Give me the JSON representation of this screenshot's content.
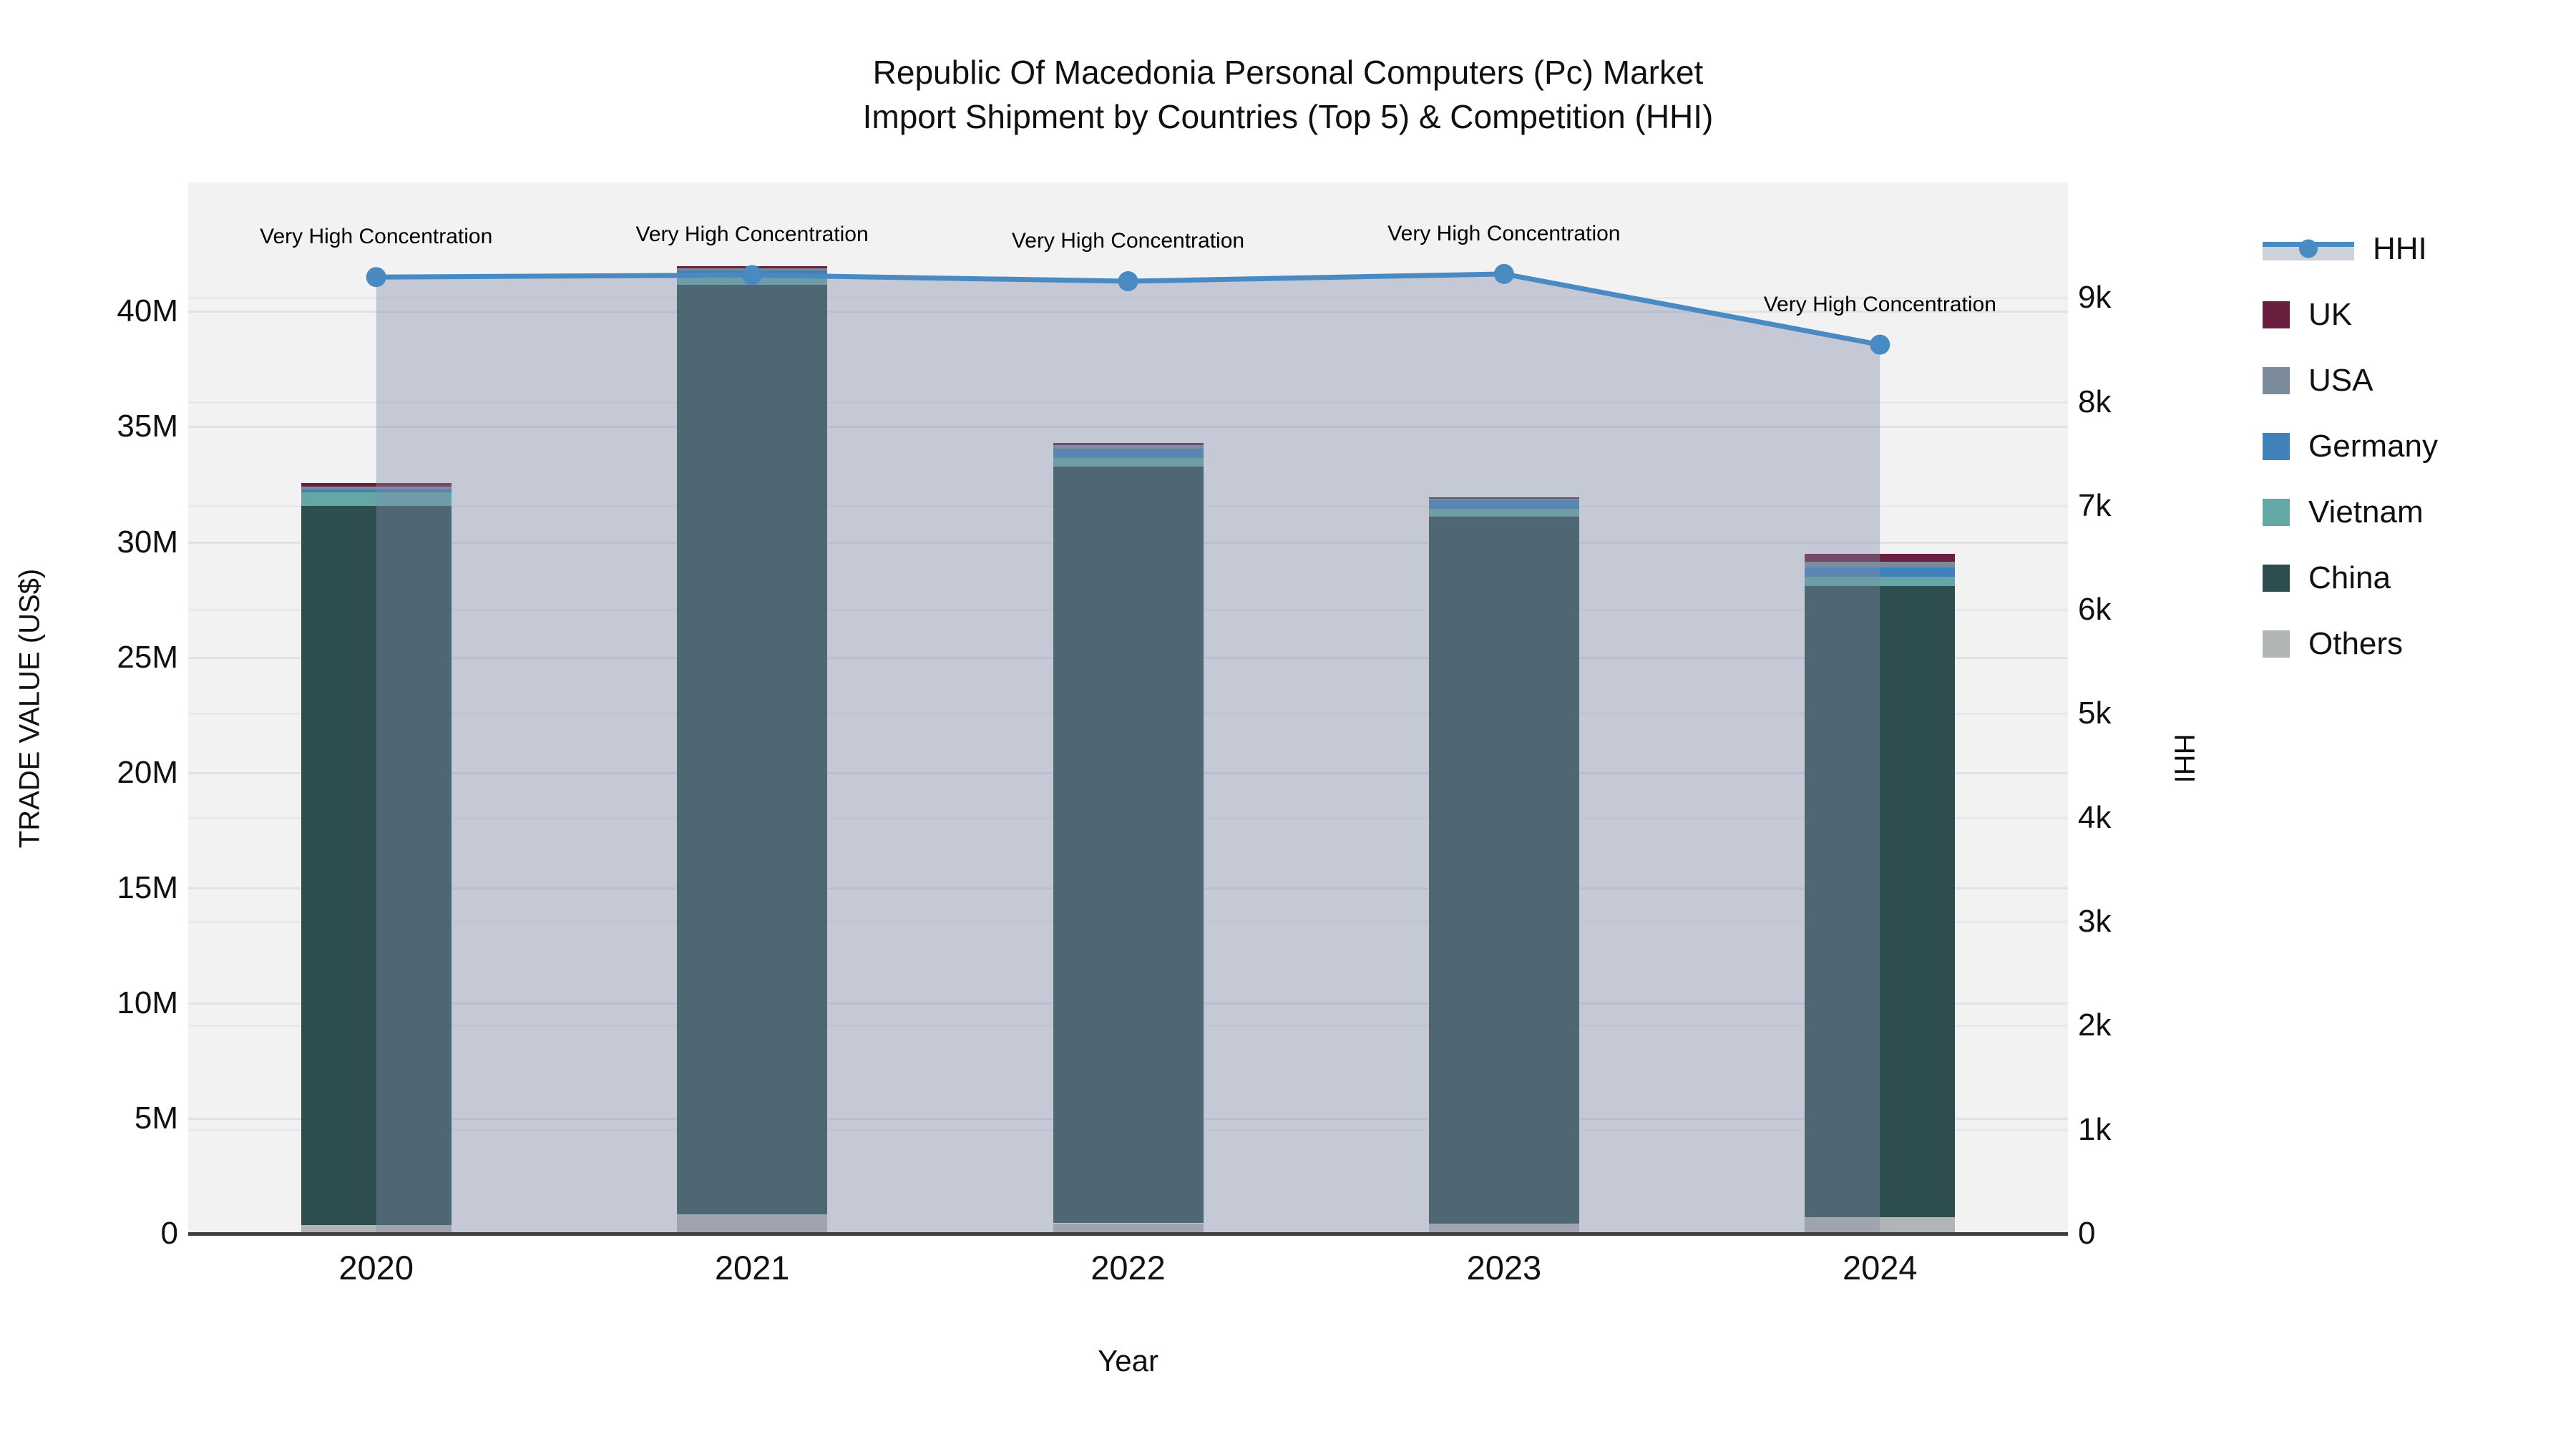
{
  "title": {
    "line1": "Republic Of Macedonia Personal Computers (Pc) Market",
    "line2": "Import Shipment by Countries (Top 5) & Competition (HHI)"
  },
  "axes": {
    "x": {
      "title": "Year"
    },
    "y_left": {
      "title": "TRADE VALUE (US$)"
    },
    "y_right": {
      "title": "HHI"
    }
  },
  "colors": {
    "plot_bg": "#f2f2f3",
    "grid_left": "#e2e2e4",
    "grid_right": "#e9e9eb",
    "baseline": "#3f3f3f",
    "hhi_line": "#4a8ac2",
    "hhi_fill": "rgba(130,140,170,0.4)",
    "text": "#111111"
  },
  "chart_data": {
    "type": "bar",
    "stacked": true,
    "title": "Republic Of Macedonia Personal Computers (Pc) Market Import Shipment by Countries (Top 5) & Competition (HHI)",
    "xlabel": "Year",
    "ylabel": "TRADE VALUE (US$)",
    "ylabel_right": "HHI",
    "categories": [
      "2020",
      "2021",
      "2022",
      "2023",
      "2024"
    ],
    "series": [
      {
        "name": "UK",
        "color": "#6b1f3e",
        "values": [
          160000,
          90000,
          90000,
          50000,
          340000
        ]
      },
      {
        "name": "USA",
        "color": "#7c8b9b",
        "values": [
          120000,
          120000,
          160000,
          70000,
          250000
        ]
      },
      {
        "name": "Germany",
        "color": "#4181ba",
        "values": [
          130000,
          220000,
          400000,
          400000,
          400000
        ]
      },
      {
        "name": "Vietnam",
        "color": "#63a8a5",
        "values": [
          580000,
          400000,
          370000,
          340000,
          400000
        ]
      },
      {
        "name": "China",
        "color": "#2e4d4f",
        "values": [
          31200000,
          40300000,
          32830000,
          30640000,
          27400000
        ]
      },
      {
        "name": "Others",
        "color": "#b2b5b5",
        "values": [
          380000,
          850000,
          450000,
          450000,
          700000
        ]
      }
    ],
    "line_series": {
      "name": "HHI",
      "color": "#4a8ac2",
      "axis": "right",
      "values": [
        9200,
        9220,
        9160,
        9230,
        8550
      ]
    },
    "annotations": [
      {
        "x": "2020",
        "text": "Very High Concentration"
      },
      {
        "x": "2021",
        "text": "Very High Concentration"
      },
      {
        "x": "2022",
        "text": "Very High Concentration"
      },
      {
        "x": "2023",
        "text": "Very High Concentration"
      },
      {
        "x": "2024",
        "text": "Very High Concentration"
      }
    ],
    "ylim_left": [
      0,
      45600000
    ],
    "ylim_right": [
      0,
      10110
    ],
    "left_ticks": [
      {
        "v": 0,
        "label": "0"
      },
      {
        "v": 5000000,
        "label": "5M"
      },
      {
        "v": 10000000,
        "label": "10M"
      },
      {
        "v": 15000000,
        "label": "15M"
      },
      {
        "v": 20000000,
        "label": "20M"
      },
      {
        "v": 25000000,
        "label": "25M"
      },
      {
        "v": 30000000,
        "label": "30M"
      },
      {
        "v": 35000000,
        "label": "35M"
      },
      {
        "v": 40000000,
        "label": "40M"
      }
    ],
    "right_ticks": [
      {
        "v": 0,
        "label": "0"
      },
      {
        "v": 1000,
        "label": "1k"
      },
      {
        "v": 2000,
        "label": "2k"
      },
      {
        "v": 3000,
        "label": "3k"
      },
      {
        "v": 4000,
        "label": "4k"
      },
      {
        "v": 5000,
        "label": "5k"
      },
      {
        "v": 6000,
        "label": "6k"
      },
      {
        "v": 7000,
        "label": "7k"
      },
      {
        "v": 8000,
        "label": "8k"
      },
      {
        "v": 9000,
        "label": "9k"
      }
    ],
    "legend_order": [
      "HHI",
      "UK",
      "USA",
      "Germany",
      "Vietnam",
      "China",
      "Others"
    ],
    "grid": true,
    "legend_position": "right"
  }
}
